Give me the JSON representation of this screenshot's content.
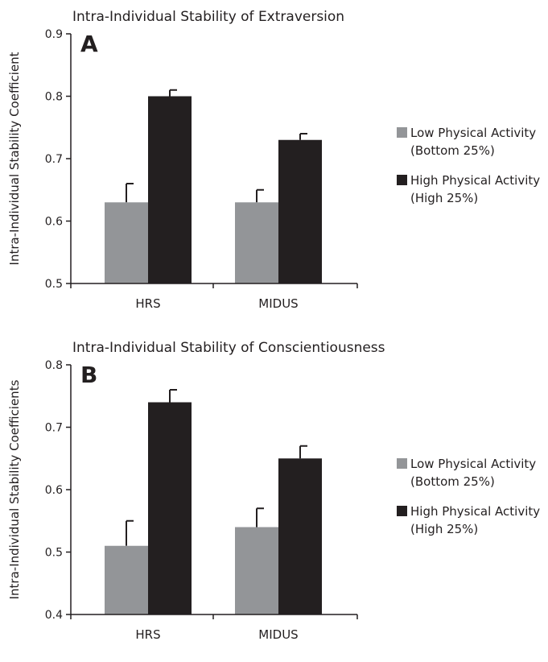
{
  "colors": {
    "low": "#939598",
    "high": "#231f20",
    "axis": "#231f20"
  },
  "chart_data": [
    {
      "type": "bar",
      "panel_label": "A",
      "title": "Intra-Individual Stability of Extraversion",
      "xlabel": "",
      "ylabel": "Intra-Individual Stability Coefficient",
      "ylim": [
        0.5,
        0.9
      ],
      "yticks": [
        0.5,
        0.6,
        0.7,
        0.8,
        0.9
      ],
      "ytick_labels": [
        "0.5",
        "0.6",
        "0.7",
        "0.8",
        "0.9"
      ],
      "categories": [
        "HRS",
        "MIDUS"
      ],
      "series": [
        {
          "name": "Low Physical Activity (Bottom 25%)",
          "legend_lines": [
            "Low Physical Activity",
            "(Bottom 25%)"
          ],
          "color": "#939598",
          "values": [
            0.63,
            0.63
          ],
          "error_upper": [
            0.66,
            0.65
          ]
        },
        {
          "name": "High Physical Activity (High 25%)",
          "legend_lines": [
            "High Physical Activity",
            "(High 25%)"
          ],
          "color": "#231f20",
          "values": [
            0.8,
            0.73
          ],
          "error_upper": [
            0.81,
            0.74
          ]
        }
      ],
      "grid": false,
      "legend_position": "right"
    },
    {
      "type": "bar",
      "panel_label": "B",
      "title": "Intra-Individual Stability of Conscientiousness",
      "xlabel": "",
      "ylabel": "Intra-Individual Stability Coefficients",
      "ylim": [
        0.4,
        0.8
      ],
      "yticks": [
        0.4,
        0.5,
        0.6,
        0.7,
        0.8
      ],
      "ytick_labels": [
        "0.4",
        "0.5",
        "0.6",
        "0.7",
        "0.8"
      ],
      "categories": [
        "HRS",
        "MIDUS"
      ],
      "series": [
        {
          "name": "Low Physical Activity (Bottom 25%)",
          "legend_lines": [
            "Low Physical Activity",
            "(Bottom 25%)"
          ],
          "color": "#939598",
          "values": [
            0.51,
            0.54
          ],
          "error_upper": [
            0.55,
            0.57
          ]
        },
        {
          "name": "High Physical Activity (High 25%)",
          "legend_lines": [
            "High Physical Activity",
            "(High 25%)"
          ],
          "color": "#231f20",
          "values": [
            0.74,
            0.65
          ],
          "error_upper": [
            0.76,
            0.67
          ]
        }
      ],
      "grid": false,
      "legend_position": "right"
    }
  ]
}
